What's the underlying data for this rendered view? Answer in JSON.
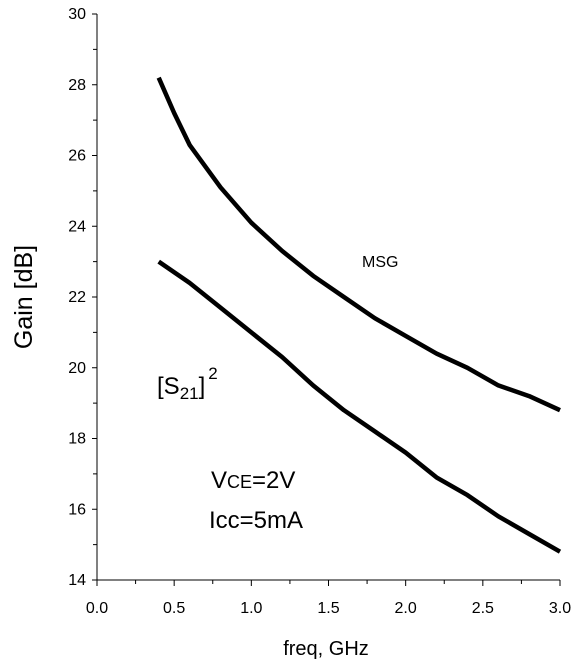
{
  "chart_data": {
    "type": "line",
    "title": "",
    "xlabel": "freq, GHz",
    "ylabel": "Gain [dB]",
    "xlim": [
      0.0,
      3.0
    ],
    "ylim": [
      14,
      30
    ],
    "x_ticks": [
      "0.0",
      "0.5",
      "1.0",
      "1.5",
      "2.0",
      "2.5",
      "3.0"
    ],
    "y_ticks": [
      "14",
      "16",
      "18",
      "20",
      "22",
      "24",
      "26",
      "28",
      "30"
    ],
    "grid": false,
    "colors": {
      "line": "#000000",
      "axis": "#000000",
      "background": "#ffffff"
    },
    "series": [
      {
        "name": "MSG",
        "x": [
          0.4,
          0.5,
          0.6,
          0.8,
          1.0,
          1.2,
          1.4,
          1.6,
          1.8,
          2.0,
          2.2,
          2.4,
          2.6,
          2.8,
          3.0
        ],
        "y": [
          28.2,
          27.2,
          26.3,
          25.1,
          24.1,
          23.3,
          22.6,
          22.0,
          21.4,
          20.9,
          20.4,
          20.0,
          19.5,
          19.2,
          18.8
        ]
      },
      {
        "name": "[S21]2",
        "x": [
          0.4,
          0.6,
          0.8,
          1.0,
          1.2,
          1.4,
          1.6,
          1.8,
          2.0,
          2.2,
          2.4,
          2.6,
          2.8,
          3.0
        ],
        "y": [
          23.0,
          22.4,
          21.7,
          21.0,
          20.3,
          19.5,
          18.8,
          18.2,
          17.6,
          16.9,
          16.4,
          15.8,
          15.3,
          14.8
        ]
      }
    ],
    "annotations": {
      "msg": "MSG",
      "s21_open": "[S",
      "s21_sub": "21",
      "s21_close": "]",
      "s21_sup": "2",
      "vce_main": "V",
      "vce_sub": "CE",
      "vce_value": "=2V",
      "icc": "Icc=5mA"
    }
  }
}
